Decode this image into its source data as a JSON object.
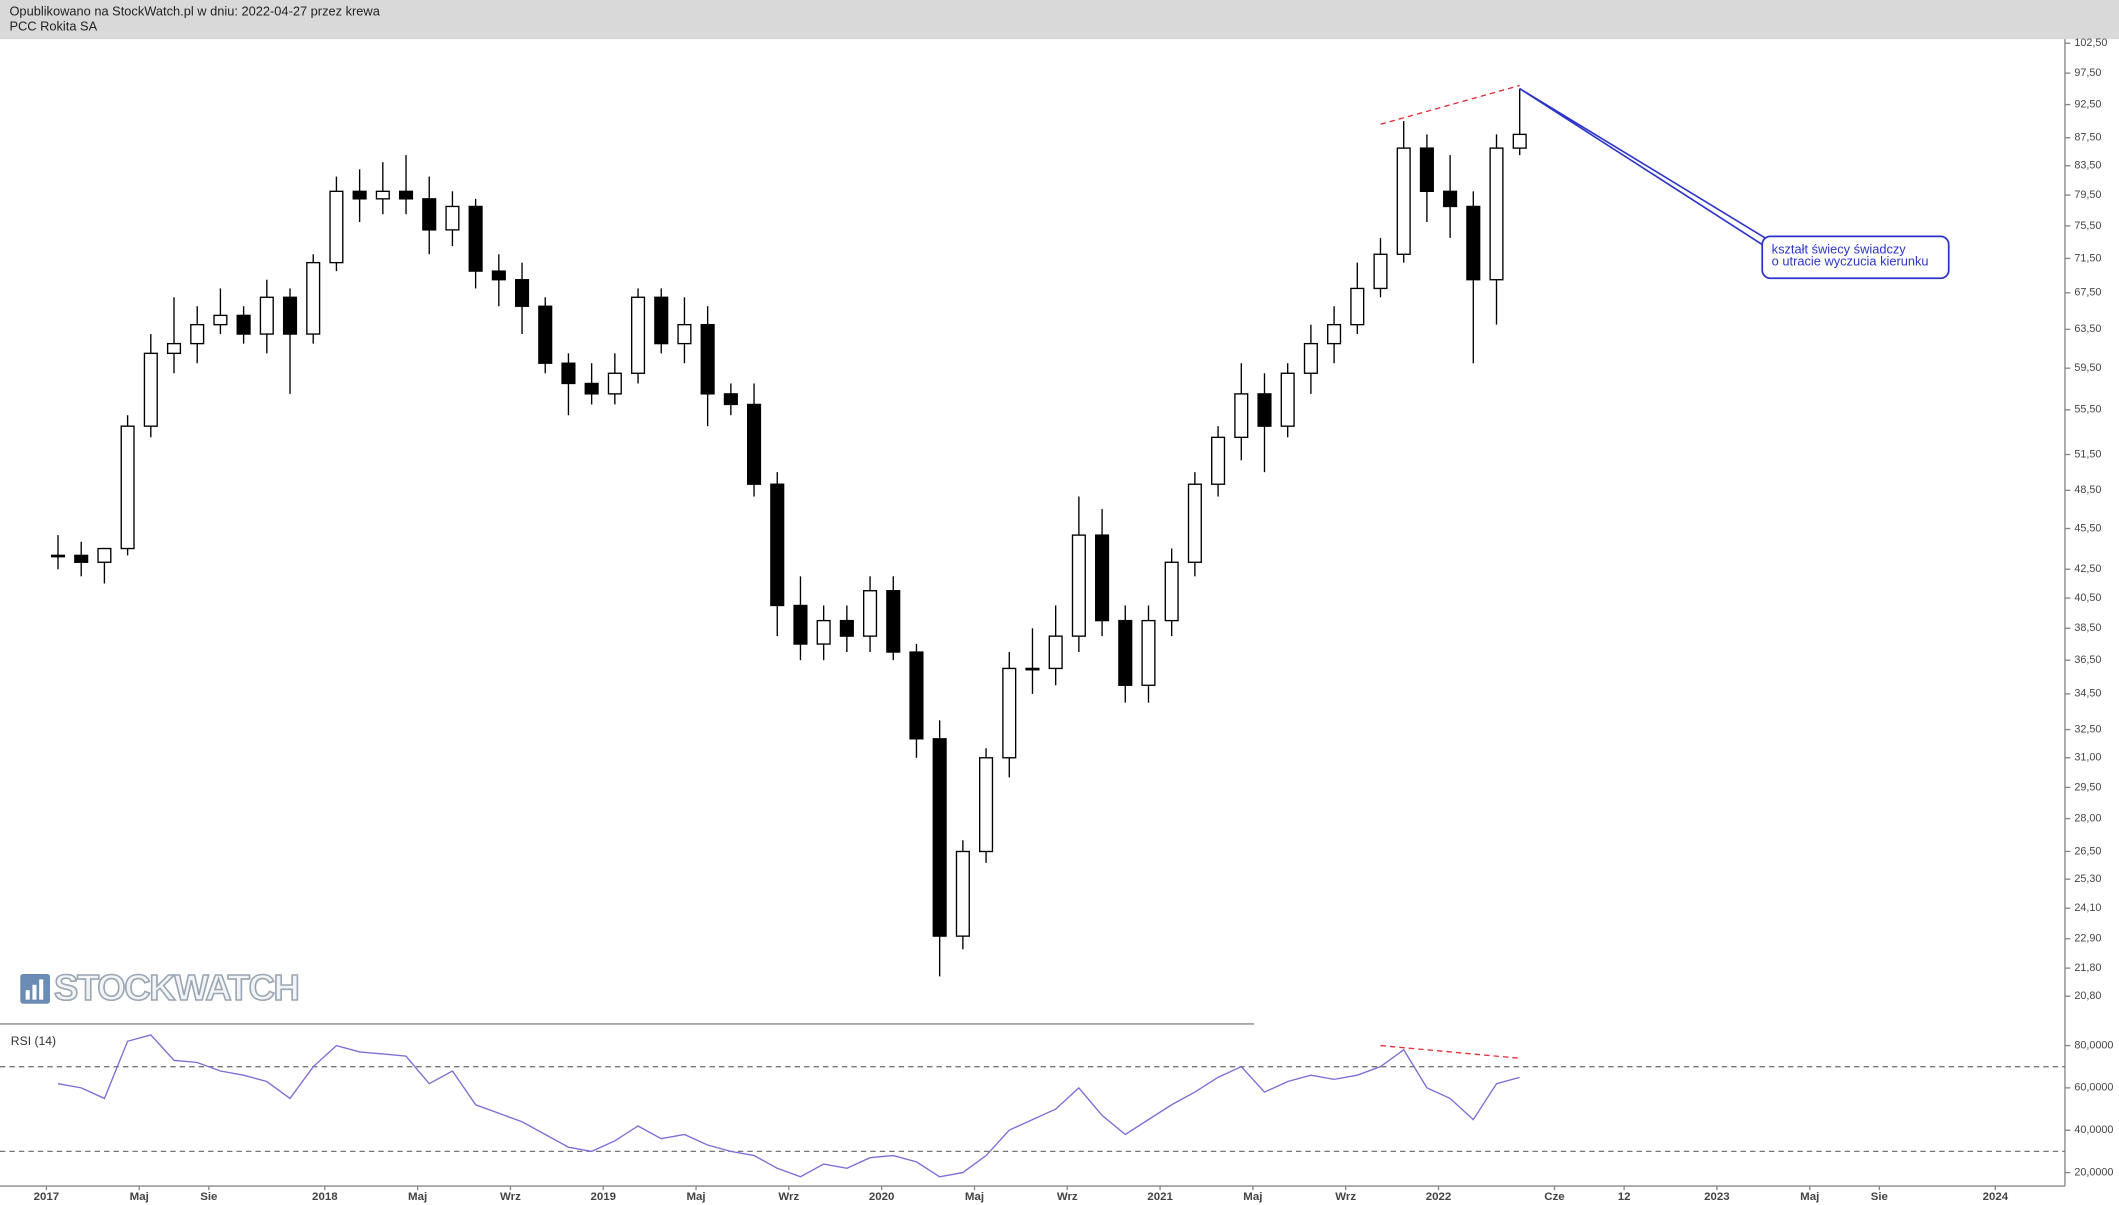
{
  "header": {
    "published": "Opublikowano na StockWatch.pl w dniu: 2022-04-27 przez krewa",
    "instrument": "PCC Rokita SA"
  },
  "watermark": "STOCKWATCH",
  "chart_data": [
    {
      "type": "candlestick",
      "log_scale": true,
      "xlim": [
        "2016-11",
        "2024-04"
      ],
      "ylim": [
        19.9,
        103.2
      ],
      "yticks": [
        {
          "value": 102.5,
          "label": "102,50"
        },
        {
          "value": 97.5,
          "label": "97,50"
        },
        {
          "value": 92.5,
          "label": "92,50"
        },
        {
          "value": 87.5,
          "label": "87,50"
        },
        {
          "value": 83.5,
          "label": "83,50"
        },
        {
          "value": 79.5,
          "label": "79,50"
        },
        {
          "value": 75.5,
          "label": "75,50"
        },
        {
          "value": 71.5,
          "label": "71,50"
        },
        {
          "value": 67.5,
          "label": "67,50"
        },
        {
          "value": 63.5,
          "label": "63,50"
        },
        {
          "value": 59.5,
          "label": "59,50"
        },
        {
          "value": 55.5,
          "label": "55,50"
        },
        {
          "value": 51.5,
          "label": "51,50"
        },
        {
          "value": 48.5,
          "label": "48,50"
        },
        {
          "value": 45.5,
          "label": "45,50"
        },
        {
          "value": 42.5,
          "label": "42,50"
        },
        {
          "value": 40.5,
          "label": "40,50"
        },
        {
          "value": 38.5,
          "label": "38,50"
        },
        {
          "value": 36.5,
          "label": "36,50"
        },
        {
          "value": 34.5,
          "label": "34,50"
        },
        {
          "value": 32.5,
          "label": "32,50"
        },
        {
          "value": 31,
          "label": "31,00"
        },
        {
          "value": 29.5,
          "label": "29,50"
        },
        {
          "value": 28,
          "label": "28,00"
        },
        {
          "value": 26.5,
          "label": "26,50"
        },
        {
          "value": 25.3,
          "label": "25,30"
        },
        {
          "value": 24.1,
          "label": "24,10"
        },
        {
          "value": 22.9,
          "label": "22,90"
        },
        {
          "value": 21.8,
          "label": "21,80"
        },
        {
          "value": 20.8,
          "label": "20,80"
        }
      ],
      "x": [
        "2017-01",
        "2017-02",
        "2017-03",
        "2017-04",
        "2017-05",
        "2017-06",
        "2017-07",
        "2017-08",
        "2017-09",
        "2017-10",
        "2017-11",
        "2017-12",
        "2018-01",
        "2018-02",
        "2018-03",
        "2018-04",
        "2018-05",
        "2018-06",
        "2018-07",
        "2018-08",
        "2018-09",
        "2018-10",
        "2018-11",
        "2018-12",
        "2019-01",
        "2019-02",
        "2019-03",
        "2019-04",
        "2019-05",
        "2019-06",
        "2019-07",
        "2019-08",
        "2019-09",
        "2019-10",
        "2019-11",
        "2019-12",
        "2020-01",
        "2020-02",
        "2020-03",
        "2020-04",
        "2020-05",
        "2020-06",
        "2020-07",
        "2020-08",
        "2020-09",
        "2020-10",
        "2020-11",
        "2020-12",
        "2021-01",
        "2021-02",
        "2021-03",
        "2021-04",
        "2021-05",
        "2021-06",
        "2021-07",
        "2021-08",
        "2021-09",
        "2021-10",
        "2021-11",
        "2021-12",
        "2022-01",
        "2022-02",
        "2022-03",
        "2022-04"
      ],
      "open": [
        43.5,
        43.5,
        43,
        44,
        54,
        61,
        62,
        64,
        65,
        63,
        67,
        63,
        71,
        80,
        79,
        80,
        79,
        75,
        78,
        70,
        69,
        66,
        60,
        58,
        57,
        59,
        67,
        62,
        64,
        57,
        56,
        49,
        40,
        37.5,
        39,
        38,
        41,
        37,
        32,
        23,
        26.5,
        31,
        36,
        36,
        38,
        45,
        39,
        35,
        39,
        43,
        49,
        53,
        57,
        54,
        59,
        62,
        64,
        68,
        72,
        86,
        80,
        78,
        69,
        86
      ],
      "high": [
        45,
        44.5,
        44,
        55,
        63,
        67,
        66,
        68,
        66,
        69,
        68,
        72,
        82,
        83,
        84,
        85,
        82,
        80,
        79,
        72,
        71,
        67,
        61,
        60,
        61,
        68,
        68,
        67,
        66,
        58,
        58,
        50,
        42,
        40,
        40,
        42,
        42,
        37.5,
        33,
        27,
        31.5,
        37,
        38.5,
        40,
        48,
        47,
        40,
        40,
        44,
        50,
        54,
        60,
        59,
        60,
        64,
        66,
        71,
        74,
        90,
        88,
        85,
        80,
        88,
        95
      ],
      "low": [
        42.5,
        42,
        41.5,
        43.5,
        53,
        59,
        60,
        63,
        62,
        61,
        57,
        62,
        70,
        76,
        77,
        77,
        72,
        73,
        68,
        66,
        63,
        59,
        55,
        56,
        56,
        58,
        61,
        60,
        54,
        55,
        48,
        38,
        36.5,
        36.5,
        37,
        37,
        36.5,
        31,
        21.5,
        22.5,
        26,
        30,
        34.5,
        35,
        37,
        38,
        34,
        34,
        38,
        42,
        48,
        51,
        50,
        53,
        57,
        60,
        63,
        67,
        71,
        76,
        74,
        60,
        64,
        85
      ],
      "close": [
        43.5,
        43,
        44,
        54,
        61,
        62,
        64,
        65,
        63,
        67,
        63,
        71,
        80,
        79,
        80,
        79,
        75,
        78,
        70,
        69,
        66,
        60,
        58,
        57,
        59,
        67,
        62,
        64,
        57,
        56,
        49,
        40,
        37.5,
        39,
        38,
        41,
        37,
        32,
        23,
        26.5,
        31,
        36,
        36,
        38,
        45,
        39,
        35,
        39,
        43,
        49,
        53,
        57,
        54,
        59,
        62,
        64,
        68,
        72,
        86,
        80,
        78,
        69,
        86,
        88
      ],
      "up_color": "#ffffff",
      "down_color": "#000000",
      "color": "#000000",
      "annotations": [
        {
          "type": "trend",
          "color": "#e0303a",
          "from": [
            "2021-10",
            89.5
          ],
          "to": [
            "2022-04",
            95.5
          ]
        }
      ],
      "callout": {
        "lines": [
          "kształt świecy świadczy",
          "o utracie wyczucia kierunku"
        ],
        "color": "#2d35c8"
      }
    },
    {
      "type": "line",
      "label": "RSI (14)",
      "xlim": [
        "2016-11",
        "2024-04"
      ],
      "ylim": [
        13.6,
        90.2
      ],
      "yticks": [
        {
          "value": 80,
          "label": "80,0000"
        },
        {
          "value": 60,
          "label": "60,0000"
        },
        {
          "value": 40,
          "label": "40,0000"
        },
        {
          "value": 20,
          "label": "20,0000"
        }
      ],
      "levels": [
        70,
        30
      ],
      "xticks": [
        {
          "value": "2017-01",
          "label": "2017"
        },
        {
          "value": "2017-05",
          "label": "Maj"
        },
        {
          "value": "2017-08",
          "label": "Sie"
        },
        {
          "value": "2018-01",
          "label": "2018"
        },
        {
          "value": "2018-05",
          "label": "Maj"
        },
        {
          "value": "2018-09",
          "label": "Wrz"
        },
        {
          "value": "2019-01",
          "label": "2019"
        },
        {
          "value": "2019-05",
          "label": "Maj"
        },
        {
          "value": "2019-09",
          "label": "Wrz"
        },
        {
          "value": "2020-01",
          "label": "2020"
        },
        {
          "value": "2020-05",
          "label": "Maj"
        },
        {
          "value": "2020-09",
          "label": "Wrz"
        },
        {
          "value": "2021-01",
          "label": "2021"
        },
        {
          "value": "2021-05",
          "label": "Maj"
        },
        {
          "value": "2021-09",
          "label": "Wrz"
        },
        {
          "value": "2022-01",
          "label": "2022"
        },
        {
          "value": "2022-06",
          "label": "Cze"
        },
        {
          "value": "2022-09",
          "label": "12"
        },
        {
          "value": "2023-01",
          "label": "2023"
        },
        {
          "value": "2023-05",
          "label": "Maj"
        },
        {
          "value": "2023-08",
          "label": "Sie"
        },
        {
          "value": "2024-01",
          "label": "2024"
        }
      ],
      "x": [
        "2017-01",
        "2017-02",
        "2017-03",
        "2017-04",
        "2017-05",
        "2017-06",
        "2017-07",
        "2017-08",
        "2017-09",
        "2017-10",
        "2017-11",
        "2017-12",
        "2018-01",
        "2018-02",
        "2018-03",
        "2018-04",
        "2018-05",
        "2018-06",
        "2018-07",
        "2018-08",
        "2018-09",
        "2018-10",
        "2018-11",
        "2018-12",
        "2019-01",
        "2019-02",
        "2019-03",
        "2019-04",
        "2019-05",
        "2019-06",
        "2019-07",
        "2019-08",
        "2019-09",
        "2019-10",
        "2019-11",
        "2019-12",
        "2020-01",
        "2020-02",
        "2020-03",
        "2020-04",
        "2020-05",
        "2020-06",
        "2020-07",
        "2020-08",
        "2020-09",
        "2020-10",
        "2020-11",
        "2020-12",
        "2021-01",
        "2021-02",
        "2021-03",
        "2021-04",
        "2021-05",
        "2021-06",
        "2021-07",
        "2021-08",
        "2021-09",
        "2021-10",
        "2021-11",
        "2021-12",
        "2022-01",
        "2022-02",
        "2022-03",
        "2022-04"
      ],
      "values": [
        62,
        60,
        55,
        82,
        85,
        73,
        72,
        68,
        66,
        63,
        55,
        70,
        80,
        77,
        76,
        75,
        62,
        68,
        52,
        48,
        44,
        38,
        32,
        30,
        35,
        42,
        36,
        38,
        33,
        30,
        28,
        22,
        18,
        24,
        22,
        27,
        28,
        25,
        18,
        20,
        28,
        40,
        45,
        50,
        60,
        47,
        38,
        45,
        52,
        58,
        65,
        70,
        58,
        63,
        66,
        64,
        66,
        70,
        78,
        60,
        55,
        45,
        62,
        65
      ],
      "color": "#7b6fd6",
      "annotations": [
        {
          "type": "trend",
          "color": "#e0303a",
          "from": [
            "2021-10",
            80
          ],
          "to": [
            "2022-04",
            74
          ]
        }
      ]
    }
  ]
}
